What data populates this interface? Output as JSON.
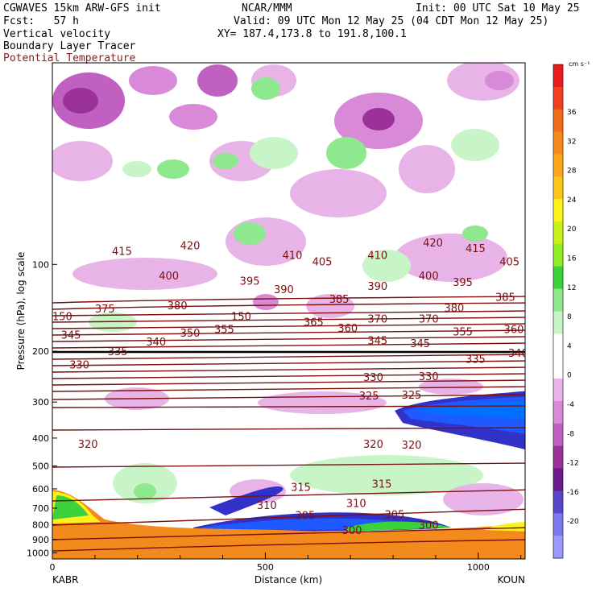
{
  "header": {
    "left_line1": "CGWAVES 15km ARW-GFS init",
    "left_line2": "Fcst:   57 h",
    "center_line1": "NCAR/MMM",
    "init": "Init: 00 UTC Sat 10 May 25",
    "valid": "Valid: 09 UTC Mon 12 May 25 (04 CDT Mon 12 May 25)",
    "field1": "Vertical velocity",
    "field2": "Boundary Layer Tracer",
    "field3": "Potential Temperature",
    "xy": "XY= 187.4,173.8 to 191.8,100.1"
  },
  "colorbar": {
    "unit": "cm s⁻¹",
    "labels": [
      "36",
      "32",
      "28",
      "24",
      "20",
      "16",
      "12",
      "8",
      "4",
      "0",
      "-4",
      "-8",
      "-12",
      "-16",
      "-20"
    ],
    "colors": [
      "#e81c1c",
      "#f04020",
      "#f26a1e",
      "#f58a1c",
      "#fba51c",
      "#fdc51a",
      "#fdf21a",
      "#c8f21a",
      "#90ee28",
      "#3cd23c",
      "#8ee88e",
      "#c8f5c8",
      "#ffffff",
      "#ffffff",
      "#e8b4e8",
      "#d88ad8",
      "#c060c0",
      "#9a329a",
      "#6a1a8a",
      "#5a46c8",
      "#7a7aee",
      "#9a9aff"
    ]
  },
  "chart_data": {
    "type": "cross-section",
    "xlabel": "Distance (km)",
    "ylabel": "Pressure (hPa), log scale",
    "x_ticks": [
      "0",
      "500",
      "1000"
    ],
    "xlim": [
      0,
      1110
    ],
    "y_ticks": [
      "100",
      "200",
      "300",
      "400",
      "500",
      "600",
      "700",
      "800",
      "900",
      "1000"
    ],
    "ylim": [
      1050,
      20
    ],
    "endpoints": {
      "left": "KABR",
      "right": "KOUN"
    },
    "theta_labels": [
      {
        "v": "415",
        "x": 140,
        "p": 92
      },
      {
        "v": "420",
        "x": 300,
        "p": 88
      },
      {
        "v": "410",
        "x": 540,
        "p": 95
      },
      {
        "v": "405",
        "x": 610,
        "p": 100
      },
      {
        "v": "410",
        "x": 740,
        "p": 95
      },
      {
        "v": "420",
        "x": 870,
        "p": 86
      },
      {
        "v": "415",
        "x": 970,
        "p": 90
      },
      {
        "v": "405",
        "x": 1050,
        "p": 100
      },
      {
        "v": "400",
        "x": 250,
        "p": 112
      },
      {
        "v": "395",
        "x": 440,
        "p": 117
      },
      {
        "v": "390",
        "x": 520,
        "p": 125
      },
      {
        "v": "390",
        "x": 740,
        "p": 122
      },
      {
        "v": "400",
        "x": 860,
        "p": 112
      },
      {
        "v": "395",
        "x": 940,
        "p": 118
      },
      {
        "v": "385",
        "x": 650,
        "p": 135
      },
      {
        "v": "385",
        "x": 1040,
        "p": 133
      },
      {
        "v": "375",
        "x": 100,
        "p": 146
      },
      {
        "v": "380",
        "x": 270,
        "p": 142
      },
      {
        "v": "380",
        "x": 920,
        "p": 145
      },
      {
        "v": "150",
        "x": 0,
        "p": 155
      },
      {
        "v": "150",
        "x": 420,
        "p": 155
      },
      {
        "v": "365",
        "x": 590,
        "p": 162
      },
      {
        "v": "370",
        "x": 740,
        "p": 158
      },
      {
        "v": "370",
        "x": 860,
        "p": 158
      },
      {
        "v": "360",
        "x": 670,
        "p": 170
      },
      {
        "v": "355",
        "x": 380,
        "p": 172
      },
      {
        "v": "355",
        "x": 940,
        "p": 175
      },
      {
        "v": "360",
        "x": 1060,
        "p": 172
      },
      {
        "v": "345",
        "x": 20,
        "p": 180
      },
      {
        "v": "350",
        "x": 300,
        "p": 177
      },
      {
        "v": "340",
        "x": 220,
        "p": 190
      },
      {
        "v": "345",
        "x": 740,
        "p": 188
      },
      {
        "v": "345",
        "x": 840,
        "p": 192
      },
      {
        "v": "335",
        "x": 130,
        "p": 205
      },
      {
        "v": "340",
        "x": 1070,
        "p": 208
      },
      {
        "v": "335",
        "x": 970,
        "p": 218
      },
      {
        "v": "330",
        "x": 40,
        "p": 228
      },
      {
        "v": "330",
        "x": 730,
        "p": 252
      },
      {
        "v": "330",
        "x": 860,
        "p": 250
      },
      {
        "v": "325",
        "x": 720,
        "p": 292
      },
      {
        "v": "325",
        "x": 820,
        "p": 290
      },
      {
        "v": "320",
        "x": 60,
        "p": 430
      },
      {
        "v": "320",
        "x": 730,
        "p": 430
      },
      {
        "v": "320",
        "x": 820,
        "p": 432
      },
      {
        "v": "315",
        "x": 560,
        "p": 605
      },
      {
        "v": "315",
        "x": 750,
        "p": 590
      },
      {
        "v": "310",
        "x": 480,
        "p": 700
      },
      {
        "v": "310",
        "x": 690,
        "p": 690
      },
      {
        "v": "305",
        "x": 570,
        "p": 760
      },
      {
        "v": "305",
        "x": 780,
        "p": 755
      },
      {
        "v": "300",
        "x": 680,
        "p": 855
      },
      {
        "v": "300",
        "x": 860,
        "p": 820
      }
    ]
  }
}
